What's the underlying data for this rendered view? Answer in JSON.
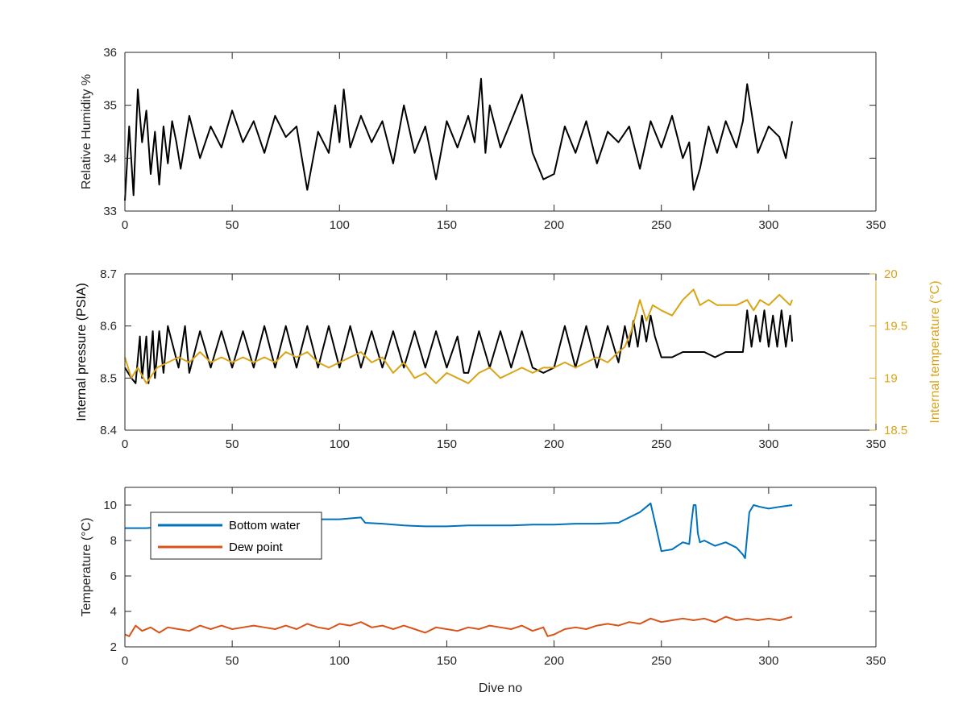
{
  "chart_data": [
    {
      "type": "line",
      "ylabel": "Relative Humidity %",
      "xlim": [
        0,
        350
      ],
      "ylim": [
        33,
        36
      ],
      "x_ticks": [
        "0",
        "50",
        "100",
        "150",
        "200",
        "250",
        "300",
        "350"
      ],
      "y_ticks": [
        "33",
        "34",
        "35",
        "36"
      ],
      "grid": false,
      "series": [
        {
          "color": "#000000",
          "x": [
            0,
            2,
            4,
            6,
            8,
            10,
            12,
            14,
            16,
            18,
            20,
            22,
            24,
            26,
            30,
            35,
            40,
            45,
            50,
            55,
            60,
            65,
            70,
            75,
            80,
            85,
            90,
            95,
            98,
            100,
            102,
            105,
            110,
            115,
            120,
            125,
            130,
            135,
            140,
            145,
            150,
            155,
            160,
            163,
            166,
            168,
            170,
            175,
            180,
            185,
            190,
            195,
            200,
            205,
            210,
            215,
            220,
            225,
            230,
            235,
            240,
            245,
            250,
            255,
            260,
            263,
            265,
            268,
            272,
            276,
            280,
            285,
            288,
            290,
            295,
            300,
            305,
            308,
            310,
            311
          ],
          "y": [
            33.2,
            34.6,
            33.3,
            35.3,
            34.3,
            34.9,
            33.7,
            34.5,
            33.5,
            34.6,
            33.9,
            34.7,
            34.3,
            33.8,
            34.8,
            34.0,
            34.6,
            34.2,
            34.9,
            34.3,
            34.7,
            34.1,
            34.8,
            34.4,
            34.6,
            33.4,
            34.5,
            34.1,
            35.0,
            34.3,
            35.3,
            34.2,
            34.8,
            34.3,
            34.7,
            33.9,
            35.0,
            34.1,
            34.6,
            33.6,
            34.7,
            34.2,
            34.8,
            34.3,
            35.5,
            34.1,
            35.0,
            34.2,
            34.7,
            35.2,
            34.1,
            33.6,
            33.7,
            34.6,
            34.1,
            34.7,
            33.9,
            34.5,
            34.3,
            34.6,
            33.8,
            34.7,
            34.2,
            34.8,
            34.0,
            34.3,
            33.4,
            33.8,
            34.6,
            34.1,
            34.7,
            34.2,
            34.7,
            35.4,
            34.1,
            34.6,
            34.4,
            34.0,
            34.5,
            34.7
          ]
        }
      ]
    },
    {
      "type": "line",
      "ylabel": "Internal pressure (PSIA)",
      "y2label": "Internal temperature (°C)",
      "xlim": [
        0,
        350
      ],
      "ylim": [
        8.4,
        8.7
      ],
      "y2lim": [
        18.5,
        20
      ],
      "x_ticks": [
        "0",
        "50",
        "100",
        "150",
        "200",
        "250",
        "300",
        "350"
      ],
      "y_ticks": [
        "8.4",
        "8.5",
        "8.6",
        "8.7"
      ],
      "y2_ticks": [
        "18.5",
        "19",
        "19.5",
        "20"
      ],
      "grid": false,
      "series": [
        {
          "axis": "left",
          "color": "#000000",
          "x": [
            0,
            3,
            5,
            7,
            8,
            10,
            11,
            13,
            14,
            16,
            18,
            20,
            25,
            28,
            30,
            35,
            40,
            45,
            50,
            55,
            60,
            65,
            70,
            75,
            80,
            85,
            90,
            95,
            100,
            105,
            110,
            115,
            120,
            125,
            130,
            135,
            140,
            145,
            150,
            155,
            158,
            160,
            165,
            170,
            175,
            180,
            185,
            190,
            195,
            200,
            205,
            210,
            215,
            220,
            225,
            230,
            233,
            235,
            237,
            239,
            241,
            243,
            245,
            247,
            250,
            255,
            260,
            265,
            270,
            275,
            280,
            285,
            288,
            290,
            292,
            294,
            296,
            298,
            300,
            302,
            304,
            306,
            308,
            310,
            311
          ],
          "y": [
            8.52,
            8.5,
            8.49,
            8.58,
            8.5,
            8.58,
            8.49,
            8.59,
            8.5,
            8.59,
            8.51,
            8.6,
            8.52,
            8.6,
            8.51,
            8.59,
            8.52,
            8.59,
            8.52,
            8.59,
            8.52,
            8.6,
            8.52,
            8.6,
            8.52,
            8.6,
            8.52,
            8.6,
            8.52,
            8.6,
            8.52,
            8.59,
            8.52,
            8.59,
            8.52,
            8.59,
            8.52,
            8.59,
            8.52,
            8.58,
            8.51,
            8.51,
            8.59,
            8.52,
            8.59,
            8.52,
            8.59,
            8.52,
            8.51,
            8.52,
            8.6,
            8.52,
            8.6,
            8.52,
            8.6,
            8.53,
            8.6,
            8.56,
            8.61,
            8.56,
            8.62,
            8.57,
            8.62,
            8.58,
            8.54,
            8.54,
            8.55,
            8.55,
            8.55,
            8.54,
            8.55,
            8.55,
            8.55,
            8.63,
            8.56,
            8.62,
            8.57,
            8.63,
            8.56,
            8.62,
            8.56,
            8.63,
            8.56,
            8.62,
            8.57
          ]
        },
        {
          "axis": "right",
          "color": "#d9a416",
          "x": [
            0,
            3,
            6,
            10,
            15,
            20,
            25,
            30,
            35,
            40,
            45,
            50,
            55,
            60,
            65,
            70,
            75,
            80,
            85,
            90,
            95,
            100,
            105,
            110,
            115,
            120,
            125,
            130,
            135,
            140,
            145,
            150,
            155,
            160,
            165,
            170,
            175,
            180,
            185,
            190,
            195,
            200,
            205,
            210,
            215,
            220,
            225,
            230,
            233,
            236,
            240,
            243,
            246,
            250,
            255,
            260,
            265,
            268,
            272,
            276,
            280,
            285,
            290,
            293,
            296,
            300,
            305,
            310,
            311
          ],
          "y": [
            19.2,
            19.0,
            19.1,
            18.95,
            19.1,
            19.15,
            19.2,
            19.15,
            19.25,
            19.15,
            19.2,
            19.15,
            19.2,
            19.15,
            19.2,
            19.15,
            19.25,
            19.2,
            19.25,
            19.15,
            19.1,
            19.15,
            19.2,
            19.25,
            19.15,
            19.2,
            19.05,
            19.15,
            19.0,
            19.05,
            18.95,
            19.05,
            19.0,
            18.95,
            19.05,
            19.1,
            19.0,
            19.05,
            19.1,
            19.05,
            19.1,
            19.1,
            19.15,
            19.1,
            19.15,
            19.2,
            19.15,
            19.25,
            19.3,
            19.45,
            19.75,
            19.55,
            19.7,
            19.65,
            19.6,
            19.75,
            19.85,
            19.7,
            19.75,
            19.7,
            19.7,
            19.7,
            19.75,
            19.65,
            19.75,
            19.7,
            19.8,
            19.7,
            19.75
          ]
        }
      ]
    },
    {
      "type": "line",
      "xlabel": "Dive no",
      "ylabel": "Temperature (°C)",
      "xlim": [
        0,
        350
      ],
      "ylim": [
        2,
        11
      ],
      "x_ticks": [
        "0",
        "50",
        "100",
        "150",
        "200",
        "250",
        "300",
        "350"
      ],
      "y_ticks": [
        "2",
        "4",
        "6",
        "8",
        "10"
      ],
      "grid": false,
      "legend": "top-left",
      "series": [
        {
          "name": "Bottom water",
          "color": "#0072bd",
          "x": [
            0,
            10,
            20,
            30,
            40,
            50,
            60,
            70,
            80,
            90,
            100,
            110,
            112,
            120,
            130,
            140,
            150,
            160,
            170,
            180,
            190,
            200,
            210,
            220,
            230,
            235,
            240,
            243,
            245,
            248,
            250,
            255,
            260,
            263,
            264,
            265,
            266,
            267,
            268,
            270,
            275,
            280,
            285,
            288,
            289,
            291,
            293,
            296,
            300,
            305,
            311
          ],
          "y": [
            8.7,
            8.7,
            8.8,
            8.9,
            9.0,
            9.0,
            9.0,
            9.1,
            9.1,
            9.2,
            9.2,
            9.3,
            9.0,
            8.95,
            8.85,
            8.8,
            8.8,
            8.85,
            8.85,
            8.85,
            8.9,
            8.9,
            8.95,
            8.95,
            9.0,
            9.3,
            9.6,
            9.9,
            10.1,
            8.5,
            7.4,
            7.5,
            7.9,
            7.8,
            9.0,
            10.0,
            10.0,
            8.4,
            7.9,
            8.0,
            7.7,
            7.9,
            7.6,
            7.2,
            7.0,
            9.6,
            10.0,
            9.9,
            9.8,
            9.9,
            10.0
          ]
        },
        {
          "name": "Dew point",
          "color": "#d95319",
          "x": [
            0,
            2,
            5,
            8,
            12,
            16,
            20,
            25,
            30,
            35,
            40,
            45,
            50,
            55,
            60,
            65,
            70,
            75,
            80,
            85,
            90,
            95,
            100,
            105,
            110,
            115,
            120,
            125,
            130,
            135,
            140,
            145,
            150,
            155,
            160,
            165,
            170,
            175,
            180,
            185,
            190,
            195,
            197,
            200,
            205,
            210,
            215,
            220,
            225,
            230,
            235,
            240,
            245,
            250,
            255,
            260,
            265,
            270,
            275,
            280,
            285,
            290,
            295,
            300,
            305,
            311
          ],
          "y": [
            2.7,
            2.6,
            3.2,
            2.9,
            3.1,
            2.8,
            3.1,
            3.0,
            2.9,
            3.2,
            3.0,
            3.2,
            3.0,
            3.1,
            3.2,
            3.1,
            3.0,
            3.2,
            3.0,
            3.3,
            3.1,
            3.0,
            3.3,
            3.2,
            3.4,
            3.1,
            3.2,
            3.0,
            3.2,
            3.0,
            2.8,
            3.1,
            3.0,
            2.9,
            3.1,
            3.0,
            3.2,
            3.1,
            3.0,
            3.2,
            2.9,
            3.1,
            2.6,
            2.7,
            3.0,
            3.1,
            3.0,
            3.2,
            3.3,
            3.2,
            3.4,
            3.3,
            3.6,
            3.4,
            3.5,
            3.6,
            3.5,
            3.6,
            3.4,
            3.7,
            3.5,
            3.6,
            3.5,
            3.6,
            3.5,
            3.7
          ]
        }
      ]
    }
  ]
}
